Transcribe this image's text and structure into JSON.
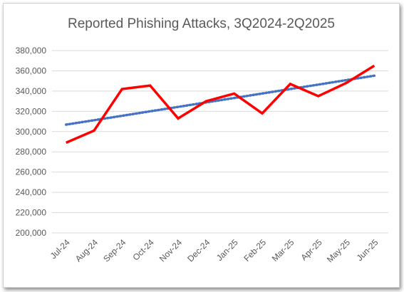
{
  "chart_data": {
    "type": "line",
    "title": "Reported Phishing Attacks, 3Q2024-2Q2025",
    "xlabel": "",
    "ylabel": "",
    "categories": [
      "Jul-24",
      "Aug-24",
      "Sep-24",
      "Oct-24",
      "Nov-24",
      "Dec-24",
      "Jan-25",
      "Feb-25",
      "Mar-25",
      "Apr-25",
      "May-25",
      "Jun-25"
    ],
    "ylim": [
      200000,
      380000
    ],
    "yticks": [
      200000,
      220000,
      240000,
      260000,
      280000,
      300000,
      320000,
      340000,
      360000,
      380000
    ],
    "ytick_labels": [
      "200,000",
      "220,000",
      "240,000",
      "260,000",
      "280,000",
      "300,000",
      "320,000",
      "340,000",
      "360,000",
      "380,000"
    ],
    "grid": true,
    "legend": "none",
    "series": [
      {
        "values": [
          289000,
          301000,
          342000,
          345500,
          313000,
          330000,
          337500,
          318000,
          347000,
          335000,
          348000,
          365000
        ],
        "color": "#ff0000",
        "style": "solid"
      },
      {
        "values": [
          306900,
          311200,
          315600,
          320000,
          324400,
          328800,
          333200,
          337600,
          342000,
          346400,
          350800,
          355200
        ],
        "color": "#4472c4",
        "style": "dotted",
        "kind": "linear-trendline"
      }
    ]
  }
}
